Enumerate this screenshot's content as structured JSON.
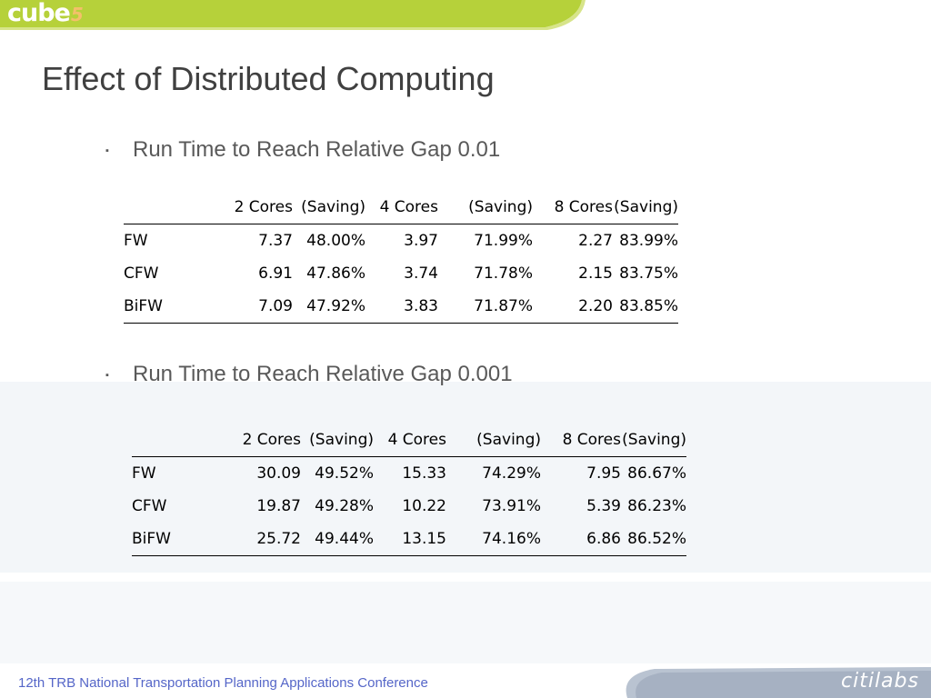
{
  "brand": {
    "logo_text": "cube",
    "logo_suffix": "5",
    "partner_logo": "citilabs"
  },
  "title": "Effect of Distributed Computing",
  "footer": "12th TRB National Transportation Planning Applications Conference",
  "sections": [
    {
      "bullet": "Run Time to Reach Relative Gap 0.01",
      "headers": [
        "",
        "2 Cores",
        "(Saving)",
        "4 Cores",
        "(Saving)",
        "8 Cores",
        "(Saving)"
      ],
      "rows": [
        [
          "FW",
          "7.37",
          "48.00%",
          "3.97",
          "71.99%",
          "2.27",
          "83.99%"
        ],
        [
          "CFW",
          "6.91",
          "47.86%",
          "3.74",
          "71.78%",
          "2.15",
          "83.75%"
        ],
        [
          "BiFW",
          "7.09",
          "47.92%",
          "3.83",
          "71.87%",
          "2.20",
          "83.85%"
        ]
      ]
    },
    {
      "bullet": "Run Time to Reach Relative Gap 0.001",
      "headers": [
        "",
        "2 Cores",
        "(Saving)",
        "4 Cores",
        "(Saving)",
        "8 Cores",
        "(Saving)"
      ],
      "rows": [
        [
          "FW",
          "30.09",
          "49.52%",
          "15.33",
          "74.29%",
          "7.95",
          "86.67%"
        ],
        [
          "CFW",
          "19.87",
          "49.28%",
          "10.22",
          "73.91%",
          "5.39",
          "86.23%"
        ],
        [
          "BiFW",
          "25.72",
          "49.44%",
          "13.15",
          "74.16%",
          "6.86",
          "86.52%"
        ]
      ]
    }
  ]
}
